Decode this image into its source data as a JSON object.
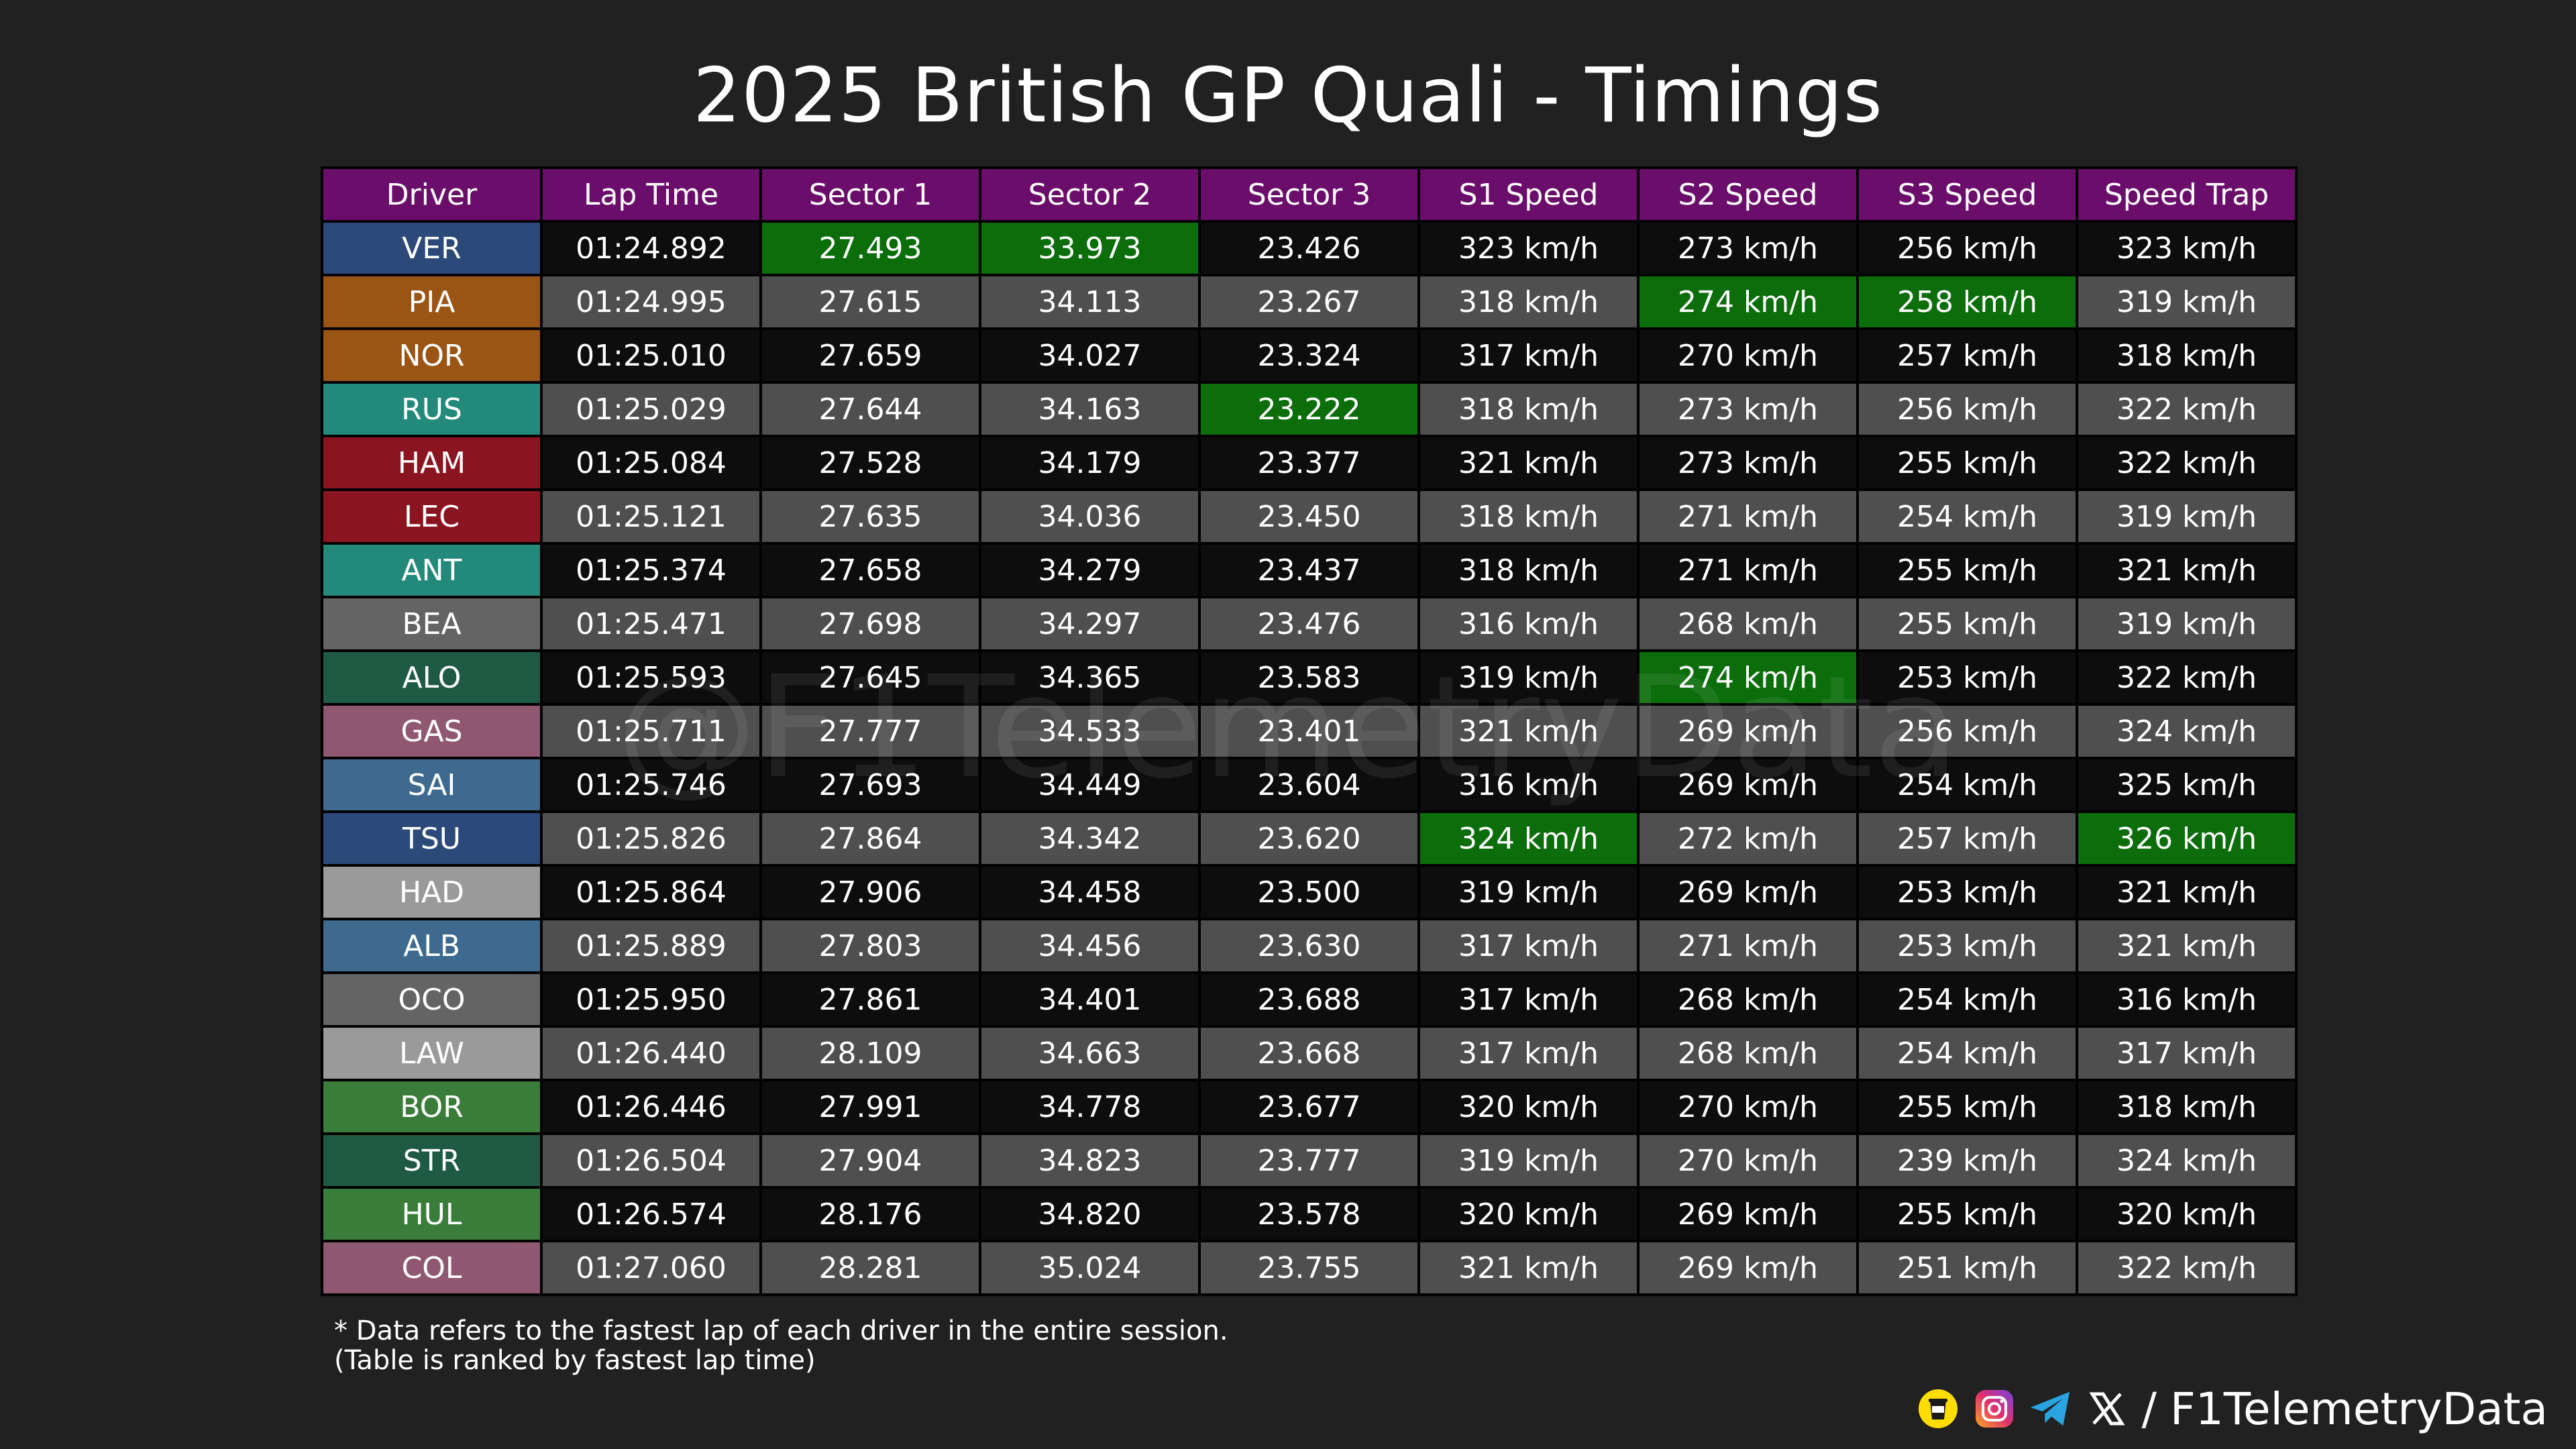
{
  "title": "2025 British GP Quali - Timings",
  "watermark": "@F1TelemetryData",
  "colors": {
    "header_bg": "#6b0d6b",
    "best_green": "#0b6e0b",
    "row_dark": "#0d0d0d",
    "row_light": "#4f4f4f"
  },
  "chart_data": {
    "type": "table",
    "title": "2025 British GP Quali - Timings",
    "columns": [
      "Driver",
      "Lap Time",
      "Sector 1",
      "Sector 2",
      "Sector 3",
      "S1 Speed",
      "S2 Speed",
      "S3 Speed",
      "Speed Trap"
    ],
    "rows": [
      {
        "driver": "VER",
        "team_color": "#2b4a79",
        "cells": [
          "01:24.892",
          "27.493",
          "33.973",
          "23.426",
          "323 km/h",
          "273 km/h",
          "256 km/h",
          "323 km/h"
        ],
        "best": [
          1,
          2
        ]
      },
      {
        "driver": "PIA",
        "team_color": "#9a5414",
        "cells": [
          "01:24.995",
          "27.615",
          "34.113",
          "23.267",
          "318 km/h",
          "274 km/h",
          "258 km/h",
          "319 km/h"
        ],
        "best": [
          5,
          6
        ]
      },
      {
        "driver": "NOR",
        "team_color": "#9a5414",
        "cells": [
          "01:25.010",
          "27.659",
          "34.027",
          "23.324",
          "317 km/h",
          "270 km/h",
          "257 km/h",
          "318 km/h"
        ],
        "best": []
      },
      {
        "driver": "RUS",
        "team_color": "#23897a",
        "cells": [
          "01:25.029",
          "27.644",
          "34.163",
          "23.222",
          "318 km/h",
          "273 km/h",
          "256 km/h",
          "322 km/h"
        ],
        "best": [
          3
        ]
      },
      {
        "driver": "HAM",
        "team_color": "#8a1521",
        "cells": [
          "01:25.084",
          "27.528",
          "34.179",
          "23.377",
          "321 km/h",
          "273 km/h",
          "255 km/h",
          "322 km/h"
        ],
        "best": []
      },
      {
        "driver": "LEC",
        "team_color": "#8a1521",
        "cells": [
          "01:25.121",
          "27.635",
          "34.036",
          "23.450",
          "318 km/h",
          "271 km/h",
          "254 km/h",
          "319 km/h"
        ],
        "best": []
      },
      {
        "driver": "ANT",
        "team_color": "#23897a",
        "cells": [
          "01:25.374",
          "27.658",
          "34.279",
          "23.437",
          "318 km/h",
          "271 km/h",
          "255 km/h",
          "321 km/h"
        ],
        "best": []
      },
      {
        "driver": "BEA",
        "team_color": "#646464",
        "cells": [
          "01:25.471",
          "27.698",
          "34.297",
          "23.476",
          "316 km/h",
          "268 km/h",
          "255 km/h",
          "319 km/h"
        ],
        "best": []
      },
      {
        "driver": "ALO",
        "team_color": "#1f5a45",
        "cells": [
          "01:25.593",
          "27.645",
          "34.365",
          "23.583",
          "319 km/h",
          "274 km/h",
          "253 km/h",
          "322 km/h"
        ],
        "best": [
          5
        ]
      },
      {
        "driver": "GAS",
        "team_color": "#8f5870",
        "cells": [
          "01:25.711",
          "27.777",
          "34.533",
          "23.401",
          "321 km/h",
          "269 km/h",
          "256 km/h",
          "324 km/h"
        ],
        "best": []
      },
      {
        "driver": "SAI",
        "team_color": "#3d6a8e",
        "cells": [
          "01:25.746",
          "27.693",
          "34.449",
          "23.604",
          "316 km/h",
          "269 km/h",
          "254 km/h",
          "325 km/h"
        ],
        "best": []
      },
      {
        "driver": "TSU",
        "team_color": "#2b4a79",
        "cells": [
          "01:25.826",
          "27.864",
          "34.342",
          "23.620",
          "324 km/h",
          "272 km/h",
          "257 km/h",
          "326 km/h"
        ],
        "best": [
          4,
          7
        ]
      },
      {
        "driver": "HAD",
        "team_color": "#9a9a9a",
        "cells": [
          "01:25.864",
          "27.906",
          "34.458",
          "23.500",
          "319 km/h",
          "269 km/h",
          "253 km/h",
          "321 km/h"
        ],
        "best": []
      },
      {
        "driver": "ALB",
        "team_color": "#3d6a8e",
        "cells": [
          "01:25.889",
          "27.803",
          "34.456",
          "23.630",
          "317 km/h",
          "271 km/h",
          "253 km/h",
          "321 km/h"
        ],
        "best": []
      },
      {
        "driver": "OCO",
        "team_color": "#646464",
        "cells": [
          "01:25.950",
          "27.861",
          "34.401",
          "23.688",
          "317 km/h",
          "268 km/h",
          "254 km/h",
          "316 km/h"
        ],
        "best": []
      },
      {
        "driver": "LAW",
        "team_color": "#9a9a9a",
        "cells": [
          "01:26.440",
          "28.109",
          "34.663",
          "23.668",
          "317 km/h",
          "268 km/h",
          "254 km/h",
          "317 km/h"
        ],
        "best": []
      },
      {
        "driver": "BOR",
        "team_color": "#3a7d3a",
        "cells": [
          "01:26.446",
          "27.991",
          "34.778",
          "23.677",
          "320 km/h",
          "270 km/h",
          "255 km/h",
          "318 km/h"
        ],
        "best": []
      },
      {
        "driver": "STR",
        "team_color": "#1f5a45",
        "cells": [
          "01:26.504",
          "27.904",
          "34.823",
          "23.777",
          "319 km/h",
          "270 km/h",
          "239 km/h",
          "324 km/h"
        ],
        "best": []
      },
      {
        "driver": "HUL",
        "team_color": "#3a7d3a",
        "cells": [
          "01:26.574",
          "28.176",
          "34.820",
          "23.578",
          "320 km/h",
          "269 km/h",
          "255 km/h",
          "320 km/h"
        ],
        "best": []
      },
      {
        "driver": "COL",
        "team_color": "#8f5870",
        "cells": [
          "01:27.060",
          "28.281",
          "35.024",
          "23.755",
          "321 km/h",
          "269 km/h",
          "251 km/h",
          "322 km/h"
        ],
        "best": []
      }
    ]
  },
  "notes": {
    "line1": "* Data refers to the fastest lap of each driver in the entire session.",
    "line2": "(Table is ranked by fastest lap time)"
  },
  "footer": {
    "separator": "/",
    "handle": "F1TelemetryData",
    "icons": [
      "buymeacoffee-icon",
      "instagram-icon",
      "telegram-icon",
      "x-icon"
    ]
  }
}
